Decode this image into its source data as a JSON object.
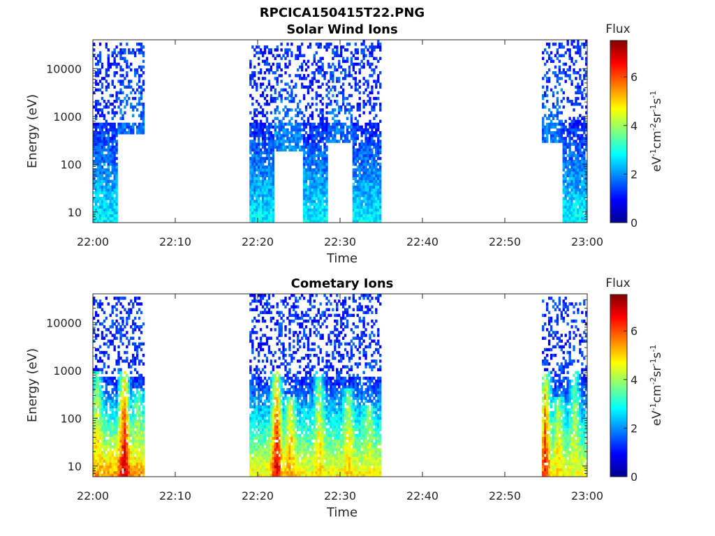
{
  "figure": {
    "main_title": "RPCICA150415T22.PNG"
  },
  "chart_data": [
    {
      "type": "heatmap",
      "title": "Solar Wind Ions",
      "xlabel": "Time",
      "ylabel": "Energy (eV)",
      "x_range": [
        "22:00",
        "23:00"
      ],
      "x_ticks": [
        "22:00",
        "22:10",
        "22:20",
        "22:30",
        "22:40",
        "22:50",
        "23:00"
      ],
      "y_scale": "log",
      "y_range": [
        6,
        40000
      ],
      "y_ticks": [
        {
          "value": 10,
          "label": "10"
        },
        {
          "value": 100,
          "label": "100"
        },
        {
          "value": 1000,
          "label": "1000"
        },
        {
          "value": 10000,
          "label": "10000"
        }
      ],
      "colorbar": {
        "title": "Flux",
        "label": "eV-1cm-2sr-1s-1",
        "range": [
          0,
          7.5
        ],
        "ticks": [
          "0",
          "2",
          "4",
          "6"
        ],
        "colormap": "jet"
      },
      "data_blocks": [
        {
          "t_start_min": 0.0,
          "t_end_min": 3.0,
          "e_min": 6,
          "e_max": 35000,
          "flux_low_energy": 2.8,
          "flux_high_energy": 1.2
        },
        {
          "t_start_min": 3.0,
          "t_end_min": 6.2,
          "e_min": 400,
          "e_max": 35000,
          "flux_low_energy": 1.8,
          "flux_high_energy": 1.2
        },
        {
          "t_start_min": 19.0,
          "t_end_min": 22.0,
          "e_min": 6,
          "e_max": 30000,
          "flux_low_energy": 2.8,
          "flux_high_energy": 1.2
        },
        {
          "t_start_min": 22.0,
          "t_end_min": 25.5,
          "e_min": 200,
          "e_max": 35000,
          "flux_low_energy": 2.0,
          "flux_high_energy": 1.2
        },
        {
          "t_start_min": 25.5,
          "t_end_min": 28.5,
          "e_min": 6,
          "e_max": 35000,
          "flux_low_energy": 2.8,
          "flux_high_energy": 1.2
        },
        {
          "t_start_min": 28.5,
          "t_end_min": 31.5,
          "e_min": 300,
          "e_max": 35000,
          "flux_low_energy": 1.8,
          "flux_high_energy": 1.2
        },
        {
          "t_start_min": 31.5,
          "t_end_min": 35.0,
          "e_min": 6,
          "e_max": 38000,
          "flux_low_energy": 2.8,
          "flux_high_energy": 1.2
        },
        {
          "t_start_min": 54.5,
          "t_end_min": 57.0,
          "e_min": 300,
          "e_max": 35000,
          "flux_low_energy": 1.8,
          "flux_high_energy": 1.2
        },
        {
          "t_start_min": 57.0,
          "t_end_min": 60.0,
          "e_min": 6,
          "e_max": 38000,
          "flux_low_energy": 2.8,
          "flux_high_energy": 1.2
        }
      ]
    },
    {
      "type": "heatmap",
      "title": "Cometary Ions",
      "xlabel": "Time",
      "ylabel": "Energy (eV)",
      "x_range": [
        "22:00",
        "23:00"
      ],
      "x_ticks": [
        "22:00",
        "22:10",
        "22:20",
        "22:30",
        "22:40",
        "22:50",
        "23:00"
      ],
      "y_scale": "log",
      "y_range": [
        6,
        40000
      ],
      "y_ticks": [
        {
          "value": 10,
          "label": "10"
        },
        {
          "value": 100,
          "label": "100"
        },
        {
          "value": 1000,
          "label": "1000"
        },
        {
          "value": 10000,
          "label": "10000"
        }
      ],
      "colorbar": {
        "title": "Flux",
        "label": "eV-1cm-2sr-1s-1",
        "range": [
          0,
          7.5
        ],
        "ticks": [
          "0",
          "2",
          "4",
          "6"
        ],
        "colormap": "jet"
      },
      "data_blocks": [
        {
          "t_start_min": 0.0,
          "t_end_min": 6.2,
          "e_min": 6,
          "e_max": 35000,
          "flux_low_energy": 5.5,
          "flux_high_energy": 1.3
        },
        {
          "t_start_min": 19.0,
          "t_end_min": 35.0,
          "e_min": 6,
          "e_max": 38000,
          "flux_low_energy": 4.8,
          "flux_high_energy": 1.3
        },
        {
          "t_start_min": 54.5,
          "t_end_min": 60.0,
          "e_min": 6,
          "e_max": 35000,
          "flux_low_energy": 4.6,
          "flux_high_energy": 1.3
        }
      ],
      "peaks": [
        {
          "t_min": 0.5,
          "e_max": 1000,
          "flux": 5.0
        },
        {
          "t_min": 3.8,
          "e_max": 1000,
          "flux": 7.0
        },
        {
          "t_min": 5.5,
          "e_max": 400,
          "flux": 4.2
        },
        {
          "t_min": 22.3,
          "e_max": 1000,
          "flux": 7.0
        },
        {
          "t_min": 24.0,
          "e_max": 300,
          "flux": 5.5
        },
        {
          "t_min": 27.5,
          "e_max": 1000,
          "flux": 5.0
        },
        {
          "t_min": 31.0,
          "e_max": 400,
          "flux": 5.0
        },
        {
          "t_min": 33.5,
          "e_max": 200,
          "flux": 4.5
        },
        {
          "t_min": 54.9,
          "e_max": 1000,
          "flux": 6.5
        },
        {
          "t_min": 56.5,
          "e_max": 300,
          "flux": 5.0
        },
        {
          "t_min": 58.5,
          "e_max": 1000,
          "flux": 4.5
        }
      ]
    }
  ]
}
